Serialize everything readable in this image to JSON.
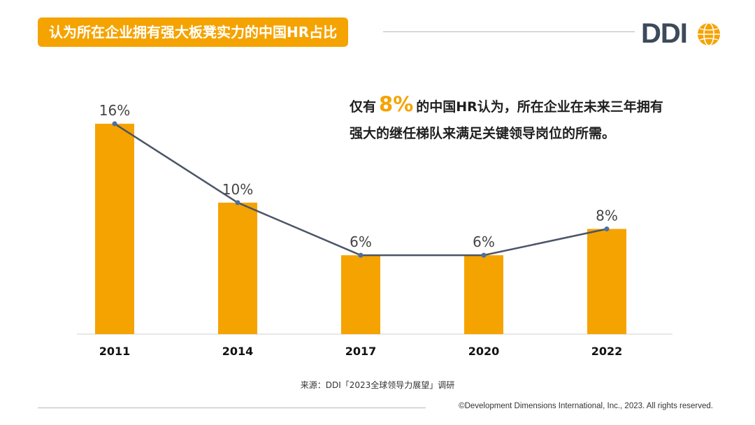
{
  "header": {
    "title": "认为所在企业拥有强大板凳实力的中国HR占比"
  },
  "logo": {
    "text": "DDI",
    "icon": "globe-icon",
    "text_color": "#3c4a5a",
    "globe_color": "#F5A300"
  },
  "callout": {
    "prefix": "仅有",
    "highlight": "8%",
    "suffix": "的中国HR认为，所在企业在未来三年拥有强大的继任梯队来满足关键领导岗位的所需。"
  },
  "chart_data": {
    "type": "bar",
    "title": "认为所在企业拥有强大板凳实力的中国HR占比",
    "categories": [
      "2011",
      "2014",
      "2017",
      "2020",
      "2022"
    ],
    "values": [
      16,
      10,
      6,
      6,
      8
    ],
    "labels": [
      "16%",
      "10%",
      "6%",
      "6%",
      "8%"
    ],
    "ylim": [
      0,
      18
    ],
    "overlay_line": true,
    "bar_color": "#F5A300",
    "line_color": "#4a5566",
    "xlabel": "",
    "ylabel": "",
    "grid": false
  },
  "footer": {
    "source": "来源：DDI「2023全球领导力展望」调研",
    "copyright": "©Development Dimensions International, Inc., 2023. All rights reserved."
  }
}
